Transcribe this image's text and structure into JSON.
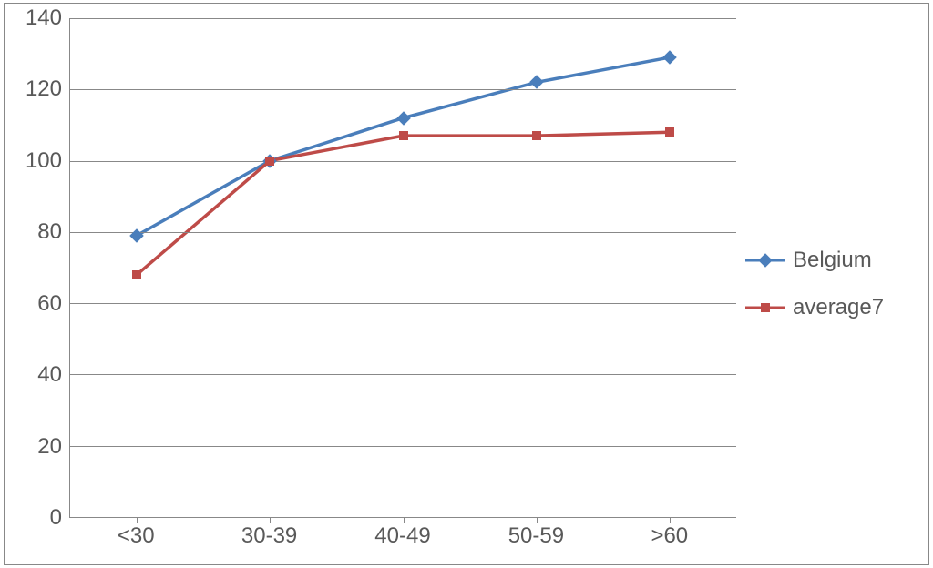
{
  "chart": {
    "type": "line",
    "background_color": "#ffffff",
    "border_color": "#888888",
    "grid_color": "#888888",
    "tick_font_color": "#595959",
    "tick_font_size": 24,
    "ylim": [
      0,
      140
    ],
    "ytick_step": 20,
    "yticks": [
      0,
      20,
      40,
      60,
      80,
      100,
      120,
      140
    ],
    "categories": [
      "<30",
      "30-39",
      "40-49",
      "50-59",
      ">60"
    ],
    "series": [
      {
        "name": "Belgium",
        "color": "#4a7ebb",
        "marker": "diamond",
        "marker_size": 11,
        "line_width": 3.5,
        "values": [
          79,
          100,
          112,
          122,
          129
        ]
      },
      {
        "name": "average7",
        "color": "#be4b48",
        "marker": "square",
        "marker_size": 10,
        "line_width": 3.5,
        "values": [
          68,
          100,
          107,
          107,
          108
        ]
      }
    ]
  }
}
